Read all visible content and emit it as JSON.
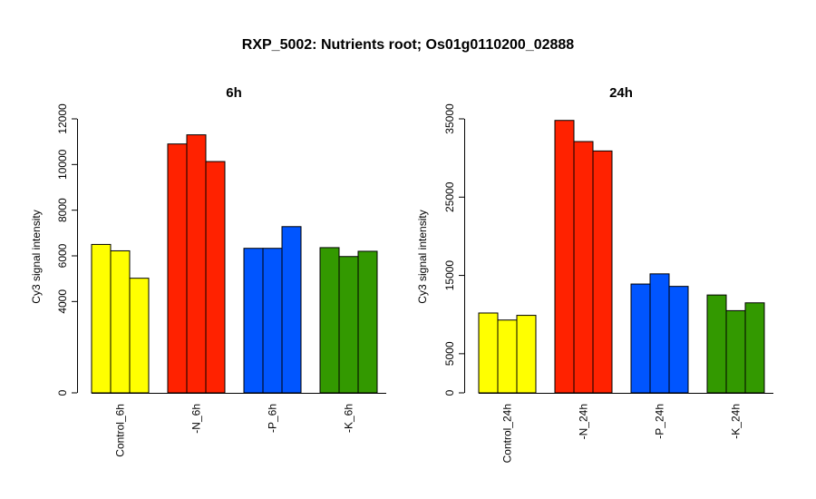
{
  "page": {
    "title": "RXP_5002: Nutrients root; Os01g0110200_02888"
  },
  "chart_data": [
    {
      "type": "bar",
      "title": "6h",
      "ylabel": "Cy3 signal intensity",
      "xlabel": "",
      "ylim": [
        0,
        12000
      ],
      "yticks": [
        0,
        4000,
        6000,
        8000,
        10000,
        12000
      ],
      "categories": [
        "Control_6h",
        "-N_6h",
        "-P_6h",
        "-K_6h"
      ],
      "colors": [
        "#ffff00",
        "#ff2200",
        "#0055ff",
        "#339900"
      ],
      "groups": [
        {
          "label": "Control_6h",
          "values": [
            6500,
            6220,
            5020
          ]
        },
        {
          "label": "-N_6h",
          "values": [
            10900,
            11300,
            10130
          ]
        },
        {
          "label": "-P_6h",
          "values": [
            6330,
            6330,
            7280
          ]
        },
        {
          "label": "-K_6h",
          "values": [
            6360,
            5970,
            6200
          ]
        }
      ]
    },
    {
      "type": "bar",
      "title": "24h",
      "ylabel": "Cy3 signal intensity",
      "xlabel": "",
      "ylim": [
        0,
        35000
      ],
      "yticks": [
        0,
        5000,
        15000,
        25000,
        35000
      ],
      "categories": [
        "Control_24h",
        "-N_24h",
        "-P_24h",
        "-K_24h"
      ],
      "colors": [
        "#ffff00",
        "#ff2200",
        "#0055ff",
        "#339900"
      ],
      "groups": [
        {
          "label": "Control_24h",
          "values": [
            10200,
            9300,
            9900
          ]
        },
        {
          "label": "-N_24h",
          "values": [
            34800,
            32100,
            30900
          ]
        },
        {
          "label": "-P_24h",
          "values": [
            13900,
            15200,
            13600
          ]
        },
        {
          "label": "-K_24h",
          "values": [
            12500,
            10500,
            11500
          ]
        }
      ]
    }
  ]
}
